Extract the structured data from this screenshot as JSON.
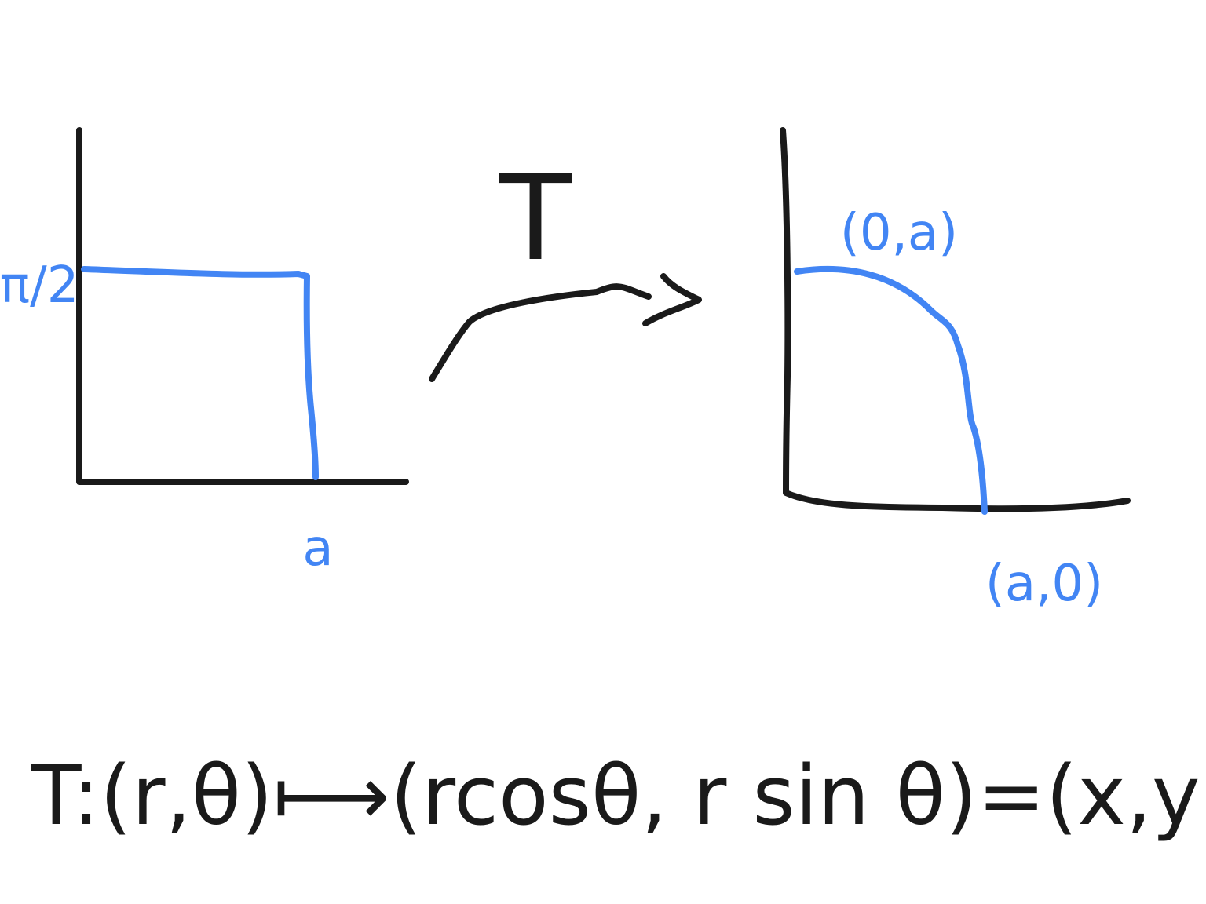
{
  "left_plot": {
    "y_label": "π/2",
    "x_label": "a"
  },
  "map_label": "T",
  "right_plot": {
    "top_label": "(0,a)",
    "bottom_label": "(a,0)"
  },
  "formula": "T:(r,θ)⟼(rcosθ, r sin θ)=(x,y"
}
